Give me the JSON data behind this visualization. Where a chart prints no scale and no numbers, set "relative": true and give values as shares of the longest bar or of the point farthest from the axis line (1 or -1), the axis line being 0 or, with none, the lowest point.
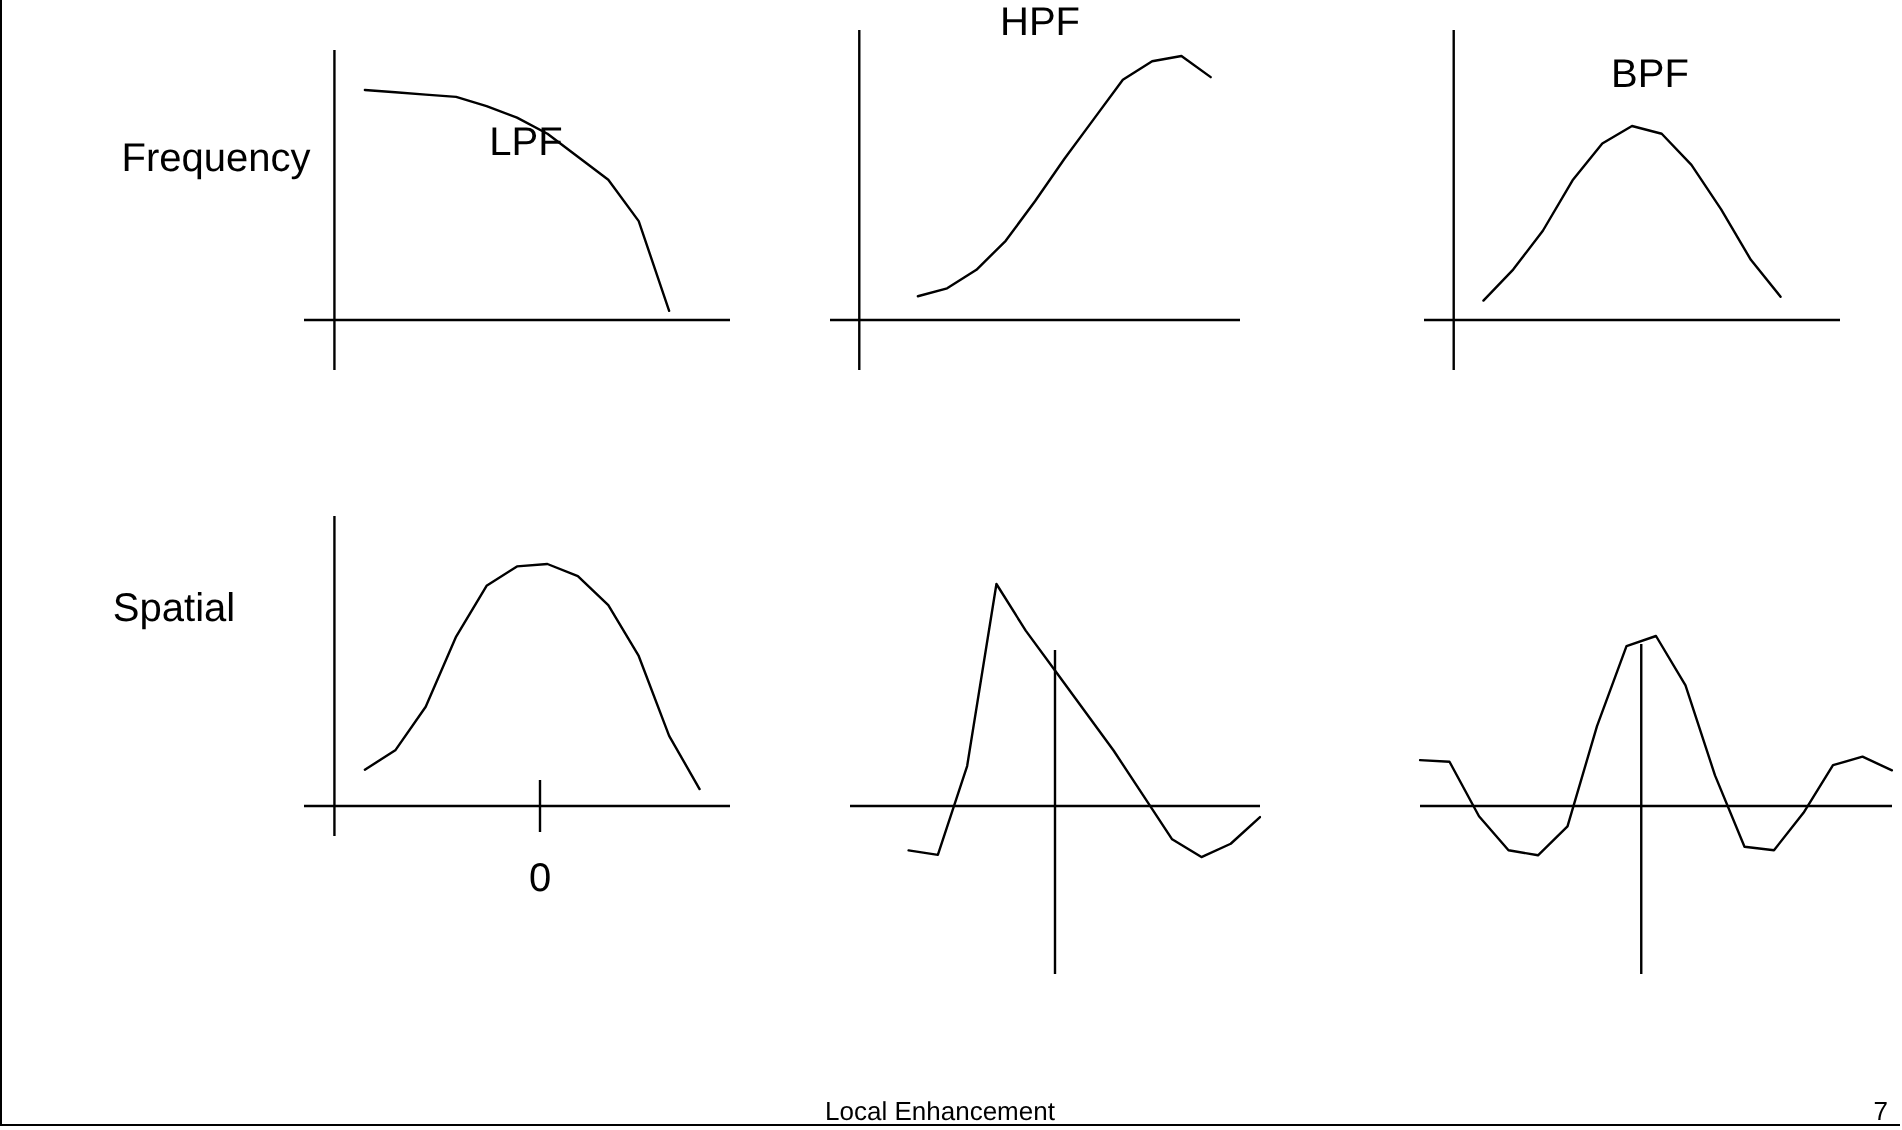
{
  "chart_data": [
    {
      "type": "line",
      "title": "LPF",
      "ylabel": "Frequency",
      "relative": true,
      "color": "#000000",
      "categories": [
        null,
        null,
        null,
        null,
        null,
        null,
        null,
        null,
        null,
        null,
        null,
        null,
        null,
        null,
        null
      ],
      "values": [
        null,
        null,
        1,
        0.99,
        0.98,
        0.97,
        0.93,
        0.88,
        0.81,
        0.71,
        0.61,
        0.43,
        0.04,
        null,
        null
      ],
      "annotations": [
        "Local Enhancement",
        "7"
      ]
    },
    {
      "type": "line",
      "title": "HPF",
      "relative": true,
      "color": "#000000",
      "categories": [
        null,
        null,
        null,
        null,
        null,
        null,
        null,
        null,
        null,
        null,
        null,
        null,
        null,
        null,
        null
      ],
      "values": [
        null,
        null,
        null,
        0.09,
        0.12,
        0.19,
        0.3,
        0.45,
        0.61,
        0.76,
        0.91,
        0.98,
        1,
        0.92,
        null
      ]
    },
    {
      "type": "line",
      "title": "BPF",
      "relative": true,
      "color": "#000000",
      "categories": [
        null,
        null,
        null,
        null,
        null,
        null,
        null,
        null,
        null,
        null,
        null,
        null,
        null,
        null,
        null
      ],
      "values": [
        null,
        null,
        0.1,
        0.26,
        0.46,
        0.72,
        0.91,
        1,
        0.96,
        0.8,
        0.57,
        0.31,
        0.12,
        null,
        null
      ]
    },
    {
      "type": "line",
      "ylabel": "Spatial",
      "relative": true,
      "color": "#000000",
      "annotations": [
        "0"
      ],
      "categories": [
        null,
        null,
        null,
        null,
        null,
        null,
        null,
        null,
        null,
        null,
        null,
        null,
        null,
        null,
        null
      ],
      "values": [
        null,
        null,
        0.15,
        0.23,
        0.41,
        0.7,
        0.91,
        0.99,
        1,
        0.95,
        0.83,
        0.62,
        0.29,
        0.07,
        null
      ]
    },
    {
      "type": "line",
      "relative": true,
      "color": "#000000",
      "categories": [
        null,
        null,
        null,
        null,
        null,
        null,
        null,
        null,
        null,
        null,
        null,
        null,
        null,
        null,
        null
      ],
      "values": [
        null,
        null,
        -0.2,
        -0.22,
        0.18,
        1,
        0.79,
        0.61,
        0.43,
        0.25,
        0.05,
        -0.15,
        -0.23,
        -0.17,
        -0.05
      ]
    },
    {
      "type": "line",
      "relative": true,
      "color": "#000000",
      "categories": [
        null,
        null,
        null,
        null,
        null,
        null,
        null,
        null,
        null,
        null,
        null,
        null,
        null,
        null,
        null,
        null,
        null
      ],
      "values": [
        0.27,
        0.26,
        -0.06,
        -0.26,
        -0.29,
        -0.12,
        0.47,
        0.94,
        1,
        0.71,
        0.18,
        -0.24,
        -0.26,
        -0.04,
        0.24,
        0.29,
        0.21
      ]
    }
  ]
}
